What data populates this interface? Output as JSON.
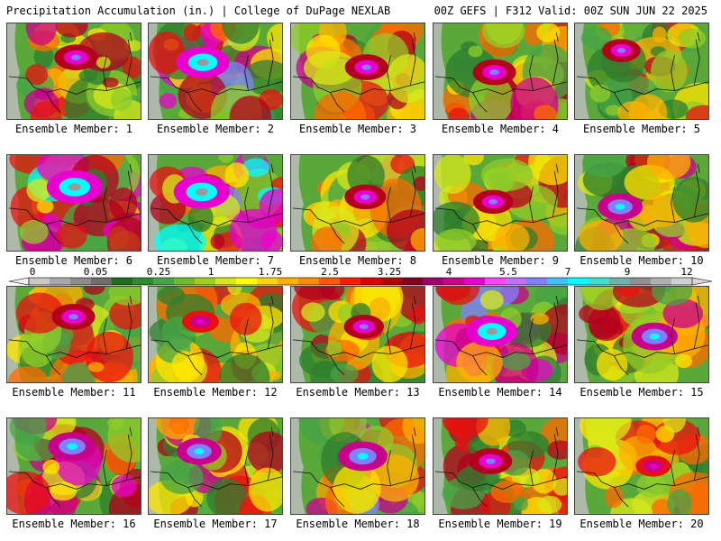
{
  "header": {
    "title": "Precipitation Accumulation (in.) | College of DuPage NEXLAB",
    "run_info": "00Z GEFS | F312 Valid: 00Z SUN JUN 22 2025"
  },
  "legend": {
    "ticks": [
      "0",
      "0.05",
      "0.25",
      "1",
      "1.75",
      "2.5",
      "3.25",
      "4",
      "5.5",
      "7",
      "9",
      "12"
    ],
    "colors": [
      "#c8c8c8",
      "#a8a8a8",
      "#8c8c8c",
      "#6e6e6e",
      "#1e6e1e",
      "#2e8b2e",
      "#47a447",
      "#6abf2a",
      "#9fd020",
      "#d8e81a",
      "#ffff00",
      "#ffd700",
      "#ffb000",
      "#ff8c00",
      "#ff5a00",
      "#ff1a00",
      "#e00000",
      "#b40000",
      "#880020",
      "#a00070",
      "#c8008c",
      "#e800d0",
      "#ff44ff",
      "#c070ff",
      "#8080ff",
      "#40c0ff",
      "#00ffff",
      "#40e0d0",
      "#70b0b0",
      "#909090",
      "#b0b0b0",
      "#d0d0d0"
    ]
  },
  "members": [
    {
      "label": "Ensemble Member: 1",
      "intensity": 0.55
    },
    {
      "label": "Ensemble Member: 2",
      "intensity": 0.85
    },
    {
      "label": "Ensemble Member: 3",
      "intensity": 0.55
    },
    {
      "label": "Ensemble Member: 4",
      "intensity": 0.55
    },
    {
      "label": "Ensemble Member: 5",
      "intensity": 0.4
    },
    {
      "label": "Ensemble Member: 6",
      "intensity": 0.95
    },
    {
      "label": "Ensemble Member: 7",
      "intensity": 0.95
    },
    {
      "label": "Ensemble Member: 8",
      "intensity": 0.5
    },
    {
      "label": "Ensemble Member: 9",
      "intensity": 0.45
    },
    {
      "label": "Ensemble Member: 10",
      "intensity": 0.6
    },
    {
      "label": "Ensemble Member: 11",
      "intensity": 0.55
    },
    {
      "label": "Ensemble Member: 12",
      "intensity": 0.35
    },
    {
      "label": "Ensemble Member: 13",
      "intensity": 0.45
    },
    {
      "label": "Ensemble Member: 14",
      "intensity": 0.8
    },
    {
      "label": "Ensemble Member: 15",
      "intensity": 0.65
    },
    {
      "label": "Ensemble Member: 16",
      "intensity": 0.7
    },
    {
      "label": "Ensemble Member: 17",
      "intensity": 0.6
    },
    {
      "label": "Ensemble Member: 18",
      "intensity": 0.75
    },
    {
      "label": "Ensemble Member: 19",
      "intensity": 0.55
    },
    {
      "label": "Ensemble Member: 20",
      "intensity": 0.3
    }
  ]
}
